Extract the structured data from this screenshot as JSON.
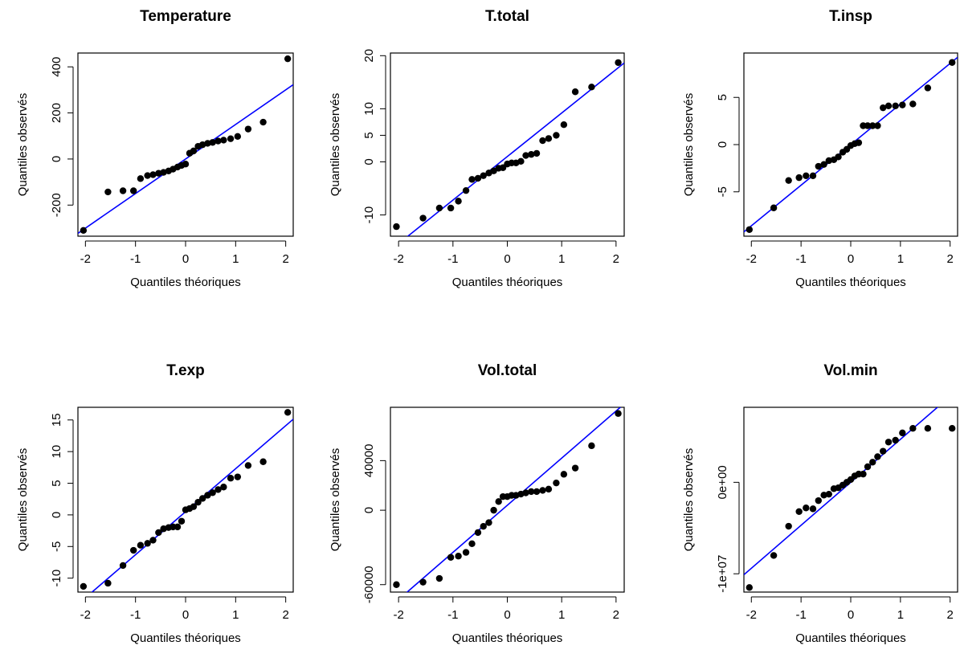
{
  "chart_data": [
    {
      "type": "scatter",
      "title": "Temperature",
      "xlabel": "Quantiles théoriques",
      "ylabel": "Quantiles observés",
      "xlim": [
        -2.15,
        2.15
      ],
      "ylim": [
        -335,
        460
      ],
      "xticks": [
        -2,
        -1,
        0,
        1,
        2
      ],
      "yticks": [
        -200,
        0,
        200,
        400
      ],
      "grid": false,
      "line_color": "#0000ff",
      "qqline": {
        "intercept": 0,
        "slope": 150
      },
      "points": {
        "x": [
          -2.04,
          -1.55,
          -1.25,
          -1.04,
          -0.9,
          -0.76,
          -0.65,
          -0.54,
          -0.44,
          -0.34,
          -0.25,
          -0.16,
          -0.08,
          0,
          0.08,
          0.16,
          0.25,
          0.34,
          0.44,
          0.54,
          0.65,
          0.76,
          0.9,
          1.04,
          1.25,
          1.55,
          2.04
        ],
        "y": [
          -310,
          -143,
          -138,
          -138,
          -85,
          -72,
          -68,
          -62,
          -58,
          -52,
          -44,
          -35,
          -28,
          -22,
          25,
          35,
          55,
          62,
          68,
          72,
          78,
          82,
          88,
          98,
          130,
          160,
          435
        ]
      }
    },
    {
      "type": "scatter",
      "title": "T.total",
      "xlabel": "Quantiles théoriques",
      "ylabel": "Quantiles observés",
      "xlim": [
        -2.15,
        2.15
      ],
      "ylim": [
        -14,
        20.5
      ],
      "xticks": [
        -2,
        -1,
        0,
        1,
        2
      ],
      "yticks": [
        -10,
        0,
        5,
        10,
        20
      ],
      "grid": false,
      "line_color": "#0000ff",
      "qqline": {
        "intercept": 1,
        "slope": 8.2
      },
      "points": {
        "x": [
          -2.04,
          -1.55,
          -1.25,
          -1.04,
          -0.9,
          -0.76,
          -0.65,
          -0.54,
          -0.44,
          -0.34,
          -0.25,
          -0.16,
          -0.08,
          0,
          0.08,
          0.16,
          0.25,
          0.34,
          0.44,
          0.54,
          0.65,
          0.76,
          0.9,
          1.04,
          1.25,
          1.55,
          2.04
        ],
        "y": [
          -12.2,
          -10.6,
          -8.7,
          -8.7,
          -7.4,
          -5.4,
          -3.3,
          -3.1,
          -2.6,
          -2.1,
          -1.7,
          -1.2,
          -1.1,
          -0.4,
          -0.2,
          -0.2,
          0.1,
          1.2,
          1.4,
          1.6,
          4.0,
          4.4,
          5.0,
          7.0,
          13.2,
          14.1,
          18.7
        ]
      }
    },
    {
      "type": "scatter",
      "title": "T.insp",
      "xlabel": "Quantiles théoriques",
      "ylabel": "Quantiles observés",
      "xlim": [
        -2.15,
        2.15
      ],
      "ylim": [
        -9.7,
        9.7
      ],
      "xticks": [
        -2,
        -1,
        0,
        1,
        2
      ],
      "yticks": [
        -5,
        0,
        5
      ],
      "grid": false,
      "line_color": "#0000ff",
      "qqline": {
        "intercept": 0,
        "slope": 4.3
      },
      "points": {
        "x": [
          -2.04,
          -1.55,
          -1.25,
          -1.04,
          -0.9,
          -0.76,
          -0.65,
          -0.54,
          -0.44,
          -0.34,
          -0.25,
          -0.16,
          -0.08,
          0,
          0.08,
          0.16,
          0.25,
          0.34,
          0.44,
          0.54,
          0.65,
          0.76,
          0.9,
          1.04,
          1.25,
          1.55,
          2.04
        ],
        "y": [
          -9.0,
          -6.7,
          -3.8,
          -3.5,
          -3.3,
          -3.3,
          -2.3,
          -2.1,
          -1.7,
          -1.6,
          -1.3,
          -0.8,
          -0.5,
          -0.1,
          0.1,
          0.2,
          2.0,
          2.0,
          2.0,
          2.0,
          3.9,
          4.1,
          4.1,
          4.2,
          4.3,
          6.0,
          8.7
        ]
      }
    },
    {
      "type": "scatter",
      "title": "T.exp",
      "xlabel": "Quantiles théoriques",
      "ylabel": "Quantiles observés",
      "xlim": [
        -2.15,
        2.15
      ],
      "ylim": [
        -12.2,
        17
      ],
      "xticks": [
        -2,
        -1,
        0,
        1,
        2
      ],
      "yticks": [
        -10,
        -5,
        0,
        5,
        10,
        15
      ],
      "grid": false,
      "line_color": "#0000ff",
      "qqline": {
        "intercept": 0.5,
        "slope": 6.8
      },
      "points": {
        "x": [
          -2.04,
          -1.55,
          -1.25,
          -1.04,
          -0.9,
          -0.76,
          -0.65,
          -0.54,
          -0.44,
          -0.34,
          -0.25,
          -0.16,
          -0.08,
          0,
          0.08,
          0.16,
          0.25,
          0.34,
          0.44,
          0.54,
          0.65,
          0.76,
          0.9,
          1.04,
          1.25,
          1.55,
          2.04
        ],
        "y": [
          -11.3,
          -10.8,
          -8.0,
          -5.6,
          -4.8,
          -4.5,
          -4.0,
          -2.8,
          -2.2,
          -2.0,
          -1.9,
          -1.9,
          -1.0,
          0.8,
          1.0,
          1.3,
          2.0,
          2.6,
          3.1,
          3.5,
          4.0,
          4.4,
          5.8,
          6.0,
          7.8,
          8.4,
          16.2
        ]
      }
    },
    {
      "type": "scatter",
      "title": "Vol.total",
      "xlabel": "Quantiles théoriques",
      "ylabel": "Quantiles observés",
      "xlim": [
        -2.15,
        2.15
      ],
      "ylim": [
        -66000,
        83000
      ],
      "xticks": [
        -2,
        -1,
        0,
        1,
        2
      ],
      "yticks": [
        -60000,
        0,
        40000
      ],
      "grid": false,
      "line_color": "#0000ff",
      "qqline": {
        "intercept": 4000,
        "slope": 38000
      },
      "points": {
        "x": [
          -2.04,
          -1.55,
          -1.25,
          -1.04,
          -0.9,
          -0.76,
          -0.65,
          -0.54,
          -0.44,
          -0.34,
          -0.25,
          -0.16,
          -0.08,
          0,
          0.08,
          0.16,
          0.25,
          0.34,
          0.44,
          0.54,
          0.65,
          0.76,
          0.9,
          1.04,
          1.25,
          1.55,
          2.04
        ],
        "y": [
          -60000,
          -58000,
          -55000,
          -38000,
          -37000,
          -34000,
          -27000,
          -18000,
          -13000,
          -10000,
          0,
          7000,
          11000,
          11000,
          12000,
          12000,
          13000,
          14000,
          15000,
          15000,
          16000,
          17000,
          22000,
          29000,
          34000,
          52000,
          78000
        ]
      }
    },
    {
      "type": "scatter",
      "title": "Vol.min",
      "xlabel": "Quantiles théoriques",
      "ylabel": "Quantiles observés",
      "xlim": [
        -2.15,
        2.15
      ],
      "ylim": [
        -12000000,
        8200000
      ],
      "xticks": [
        -2,
        -1,
        0,
        1,
        2
      ],
      "yticks": [
        -10000000,
        0
      ],
      "ytick_labels": [
        "-1e+07",
        "0e+00"
      ],
      "grid": false,
      "line_color": "#0000ff",
      "qqline": {
        "intercept": 0,
        "slope": 4700000
      },
      "points": {
        "x": [
          -2.04,
          -1.55,
          -1.25,
          -1.04,
          -0.9,
          -0.76,
          -0.65,
          -0.54,
          -0.44,
          -0.34,
          -0.25,
          -0.16,
          -0.08,
          0,
          0.08,
          0.16,
          0.25,
          0.34,
          0.44,
          0.54,
          0.65,
          0.76,
          0.9,
          1.04,
          1.25,
          1.55,
          2.04
        ],
        "y": [
          -11500000,
          -8000000,
          -4800000,
          -3200000,
          -2800000,
          -2900000,
          -2000000,
          -1400000,
          -1300000,
          -700000,
          -600000,
          -300000,
          0,
          300000,
          700000,
          900000,
          900000,
          1700000,
          2200000,
          2800000,
          3400000,
          4400000,
          4600000,
          5400000,
          5900000,
          5900000,
          5900000
        ]
      }
    }
  ]
}
